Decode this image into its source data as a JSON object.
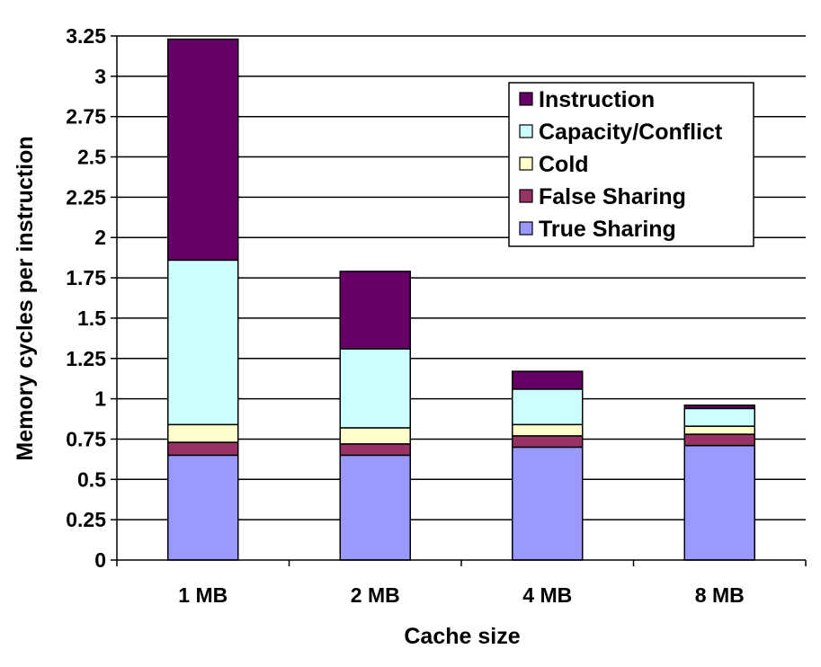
{
  "chart_data": {
    "type": "bar",
    "stacked": true,
    "title": "",
    "xlabel": "Cache size",
    "ylabel": "Memory cycles per instruction",
    "ylim": [
      0,
      3.25
    ],
    "yticks": [
      0,
      0.25,
      0.5,
      0.75,
      1,
      1.25,
      1.5,
      1.75,
      2,
      2.25,
      2.5,
      2.75,
      3,
      3.25
    ],
    "ytick_labels": [
      "0",
      "0.25",
      "0.5",
      "0.75",
      "1",
      "1.25",
      "1.5",
      "1.75",
      "2",
      "2.25",
      "2.5",
      "2.75",
      "3",
      "3.25"
    ],
    "grid": true,
    "legend_position": "top-right",
    "categories": [
      "1 MB",
      "2 MB",
      "4 MB",
      "8 MB"
    ],
    "series": [
      {
        "name": "True Sharing",
        "color": "#9999ff",
        "values": [
          0.65,
          0.65,
          0.7,
          0.71
        ]
      },
      {
        "name": "False Sharing",
        "color": "#993366",
        "values": [
          0.08,
          0.07,
          0.07,
          0.07
        ]
      },
      {
        "name": "Cold",
        "color": "#ffffcc",
        "values": [
          0.11,
          0.1,
          0.07,
          0.05
        ]
      },
      {
        "name": "Capacity/Conflict",
        "color": "#ccffff",
        "values": [
          1.02,
          0.49,
          0.22,
          0.11
        ]
      },
      {
        "name": "Instruction",
        "color": "#660066",
        "values": [
          1.37,
          0.48,
          0.11,
          0.02
        ]
      }
    ],
    "legend_order": [
      "Instruction",
      "Capacity/Conflict",
      "Cold",
      "False Sharing",
      "True Sharing"
    ]
  }
}
